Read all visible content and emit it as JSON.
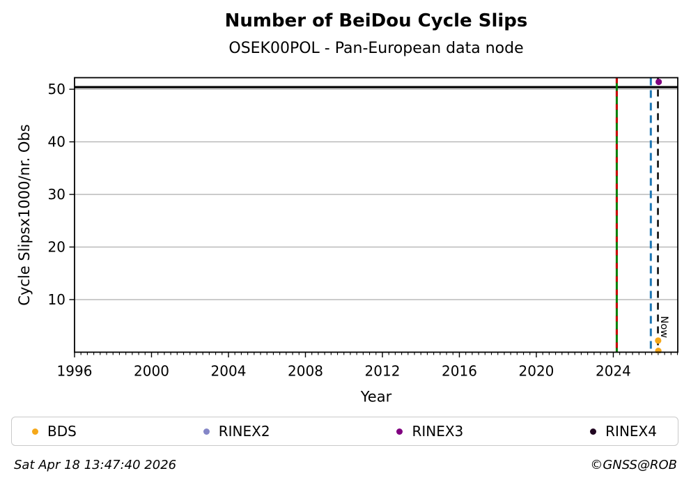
{
  "header": {
    "title": "Number of BeiDou Cycle Slips",
    "subtitle": "OSEK00POL - Pan-European data node"
  },
  "footer": {
    "timestamp": "Sat Apr 18 13:47:40 2026",
    "copyright": "©GNSS@ROB"
  },
  "legend": {
    "items": [
      {
        "label": "BDS",
        "color": "#F5A81A"
      },
      {
        "label": "RINEX2",
        "color": "#8486C7"
      },
      {
        "label": "RINEX3",
        "color": "#800080"
      },
      {
        "label": "RINEX4",
        "color": "#200520"
      }
    ]
  },
  "chart_data": {
    "type": "scatter",
    "title": "Number of BeiDou Cycle Slips",
    "subtitle": "OSEK00POL - Pan-European data node",
    "xlabel": "Year",
    "ylabel": "Cycle Slipsx1000/nr. Obs",
    "xlim": [
      1996.0,
      2027.35
    ],
    "ylim": [
      0,
      52.2
    ],
    "xticks_major": [
      1996,
      2000,
      2004,
      2008,
      2012,
      2016,
      2020,
      2024
    ],
    "xtick_minor_step": 0.33333,
    "yticks": [
      10,
      20,
      30,
      40,
      50
    ],
    "grid": "horizontal",
    "grid_color": "#b4b4b4",
    "hlines": [
      {
        "y": 50.4,
        "color": "#000000",
        "width": 3.2,
        "style": "solid",
        "name": "max-cap-line"
      }
    ],
    "vlines": [
      {
        "x": 2024.18,
        "color": "#008000",
        "width": 3,
        "style": "solid",
        "overlay_color": "#CC0000",
        "overlay_dash": "8 11",
        "name": "event-line-green-red"
      },
      {
        "x": 2025.95,
        "color": "#1F77B4",
        "width": 3,
        "style": "dashed",
        "dash": "11 7",
        "name": "event-line-blue"
      },
      {
        "x": 2026.32,
        "color": "#000000",
        "width": 2.5,
        "style": "dashed",
        "dash": "10 7",
        "label": "Now",
        "name": "now-line"
      }
    ],
    "series": [
      {
        "name": "BDS",
        "color": "#F5A81A",
        "points": [
          [
            2026.33,
            2.2
          ],
          [
            2026.34,
            0.25
          ]
        ]
      },
      {
        "name": "RINEX2",
        "color": "#8486C7",
        "points": []
      },
      {
        "name": "RINEX3",
        "color": "#800080",
        "points": [
          [
            2026.36,
            51.4
          ]
        ]
      },
      {
        "name": "RINEX4",
        "color": "#200520",
        "points": []
      }
    ],
    "legend_position": "bottom",
    "marker_radius": 4.6
  }
}
